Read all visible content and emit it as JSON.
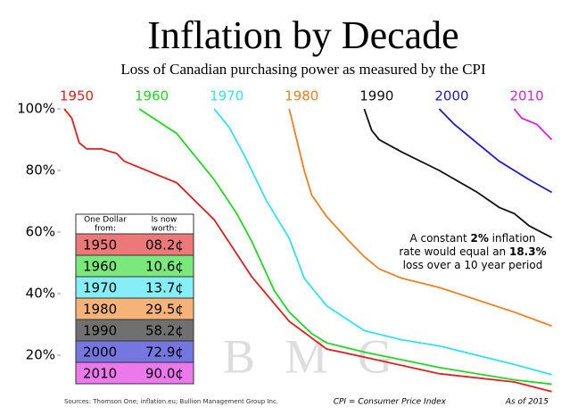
{
  "chart_data": {
    "type": "line",
    "title": "Inflation by Decade",
    "subtitle": "Loss of Canadian purchasing power as measured by the CPI",
    "xlim": [
      1950,
      2016
    ],
    "ylim": [
      8,
      100
    ],
    "yticks": [
      {
        "value": 100,
        "label": "100%"
      },
      {
        "value": 80,
        "label": "80%"
      },
      {
        "value": 60,
        "label": "60%"
      },
      {
        "value": 40,
        "label": "40%"
      },
      {
        "value": 20,
        "label": "20%"
      }
    ],
    "series": [
      {
        "name": "1950",
        "color": "#e0201f",
        "x": [
          1950,
          1951,
          1952,
          1953,
          1955,
          1957,
          1958,
          1960,
          1965,
          1970,
          1975,
          1980,
          1985,
          1990,
          2000,
          2010,
          2015
        ],
        "values": [
          100,
          97,
          89,
          87,
          87,
          85.5,
          83,
          81,
          76,
          64,
          45.5,
          31,
          22,
          19.4,
          14,
          11.3,
          8.2
        ]
      },
      {
        "name": "1960",
        "color": "#22d822",
        "x": [
          1960,
          1965,
          1970,
          1973,
          1975,
          1978,
          1980,
          1983,
          1985,
          1990,
          2000,
          2010,
          2015
        ],
        "values": [
          100,
          92,
          77,
          66,
          57,
          41,
          34,
          27,
          24,
          21,
          16,
          12,
          10.6
        ]
      },
      {
        "name": "1970",
        "color": "#33e2f0",
        "x": [
          1970,
          1972,
          1974,
          1975,
          1977,
          1980,
          1982,
          1985,
          1990,
          1995,
          2000,
          2010,
          2015
        ],
        "values": [
          100,
          94,
          85,
          80,
          70,
          58,
          45,
          36,
          28,
          25,
          23,
          17,
          13.7
        ]
      },
      {
        "name": "1980",
        "color": "#f08020",
        "x": [
          1980,
          1981,
          1982,
          1983,
          1985,
          1988,
          1990,
          1992,
          1995,
          2000,
          2005,
          2010,
          2015
        ],
        "values": [
          100,
          90,
          80,
          72,
          65,
          57,
          52,
          48,
          45,
          42,
          38,
          34,
          29.5
        ]
      },
      {
        "name": "1990",
        "color": "#111111",
        "x": [
          1990,
          1991,
          1992,
          1995,
          2000,
          2005,
          2008,
          2010,
          2012,
          2015
        ],
        "values": [
          100,
          93,
          90,
          86,
          80,
          73,
          68,
          66,
          62,
          58.2
        ]
      },
      {
        "name": "2000",
        "color": "#1a1acc",
        "x": [
          2000,
          2002,
          2005,
          2008,
          2010,
          2012,
          2015
        ],
        "values": [
          100,
          95,
          89,
          83,
          80,
          77,
          72.9
        ]
      },
      {
        "name": "2010",
        "color": "#e020e0",
        "x": [
          2010,
          2011,
          2013,
          2015
        ],
        "values": [
          100,
          97,
          95,
          90.0
        ]
      }
    ],
    "table": {
      "headers": [
        [
          "One Dollar",
          "from:"
        ],
        [
          "Is now",
          "worth:"
        ]
      ],
      "worth": [
        "08.2¢",
        "10.6¢",
        "13.7¢",
        "29.5¢",
        "58.2¢",
        "72.9¢",
        "90.0¢"
      ]
    },
    "annotation": [
      [
        {
          "text": "A constant "
        },
        {
          "text": "2%",
          "bold": true
        },
        {
          "text": " inflation"
        }
      ],
      [
        {
          "text": "rate would equal an "
        },
        {
          "text": "18.3%",
          "bold": true
        }
      ],
      [
        {
          "text": "loss over a 10 year period"
        }
      ]
    ],
    "watermark": "B M G",
    "sources": "Sources: Thomson One; inflation.eu; Bullion Management Group Inc.",
    "cpi_note": "CPI = Consumer Price Index",
    "as_of": "As of 2015"
  }
}
